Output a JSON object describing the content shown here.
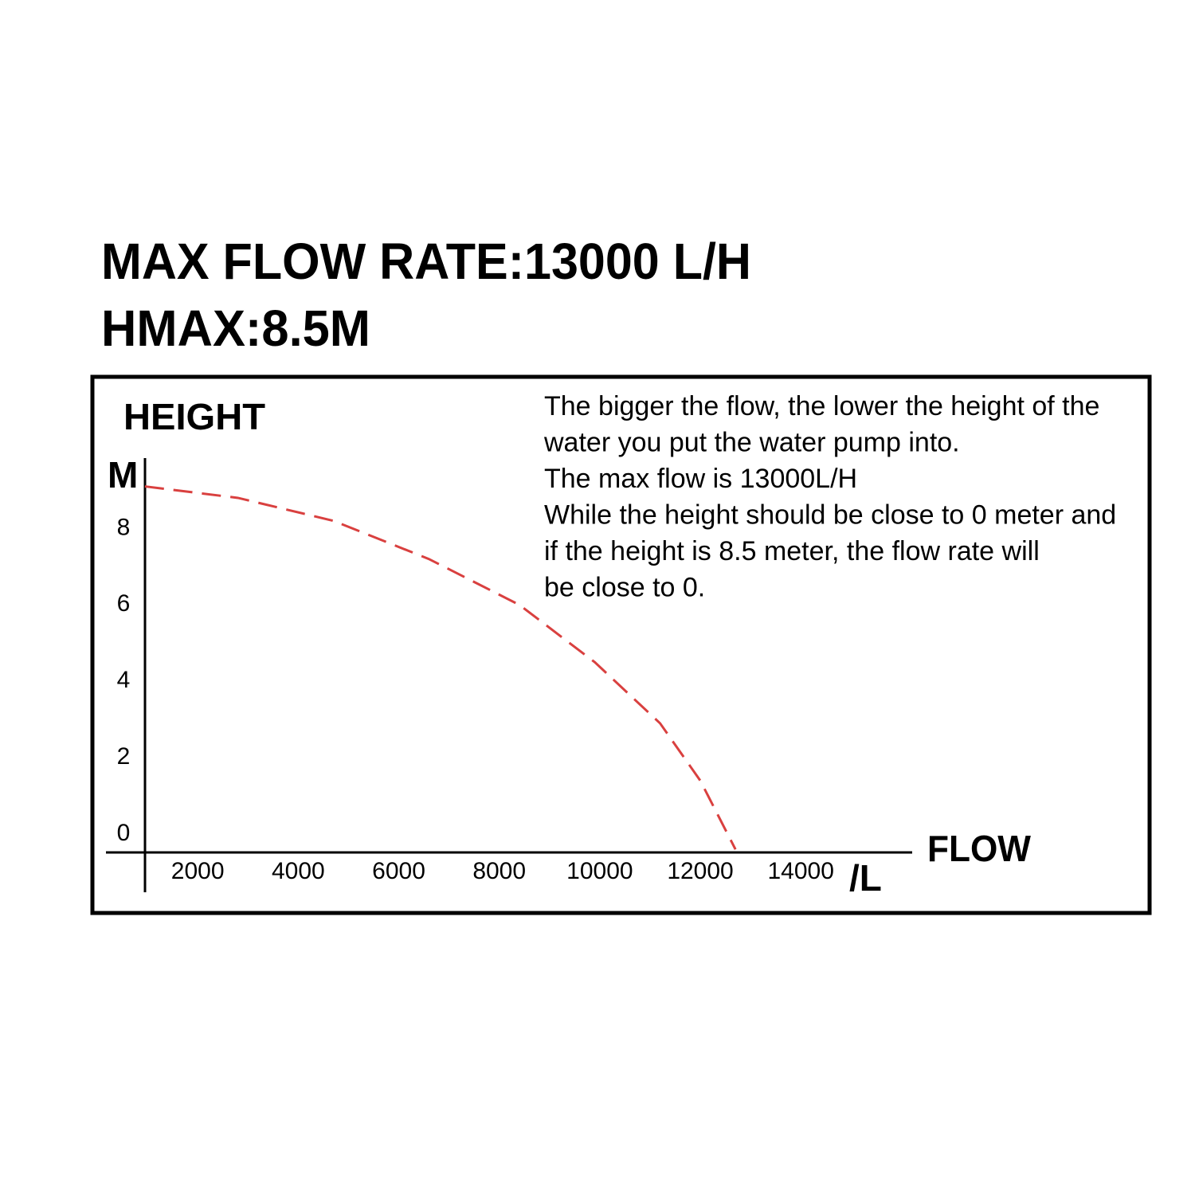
{
  "chart_data": {
    "type": "line",
    "title": "MAX FLOW RATE:13000 L/H",
    "subtitle": "HMAX:8.5M",
    "y_label": "HEIGHT",
    "y_unit": "M",
    "x_label": "FLOW",
    "x_unit": "/L",
    "annotation": [
      "The bigger the flow, the lower the height of the",
      "water you put the water pump into.",
      "The max flow is 13000L/H",
      "While the height should be close to 0 meter and",
      "if the height is 8.5 meter, the flow rate will",
      "be close to 0."
    ],
    "x": [
      950,
      2800,
      4700,
      6600,
      8400,
      9900,
      11200,
      12000,
      12700
    ],
    "series": [
      {
        "color": "#d9403f",
        "line_style": "dashed",
        "values": [
          9.1,
          8.8,
          8.2,
          7.2,
          6,
          4.5,
          2.9,
          1.4,
          -0.4
        ]
      }
    ],
    "xlim": [
      0,
      16200
    ],
    "xticks": [
      2000,
      4000,
      6000,
      8000,
      10000,
      12000,
      14000
    ],
    "ylim": [
      -0.5,
      9.8
    ],
    "yticks": [
      0,
      2,
      4,
      6,
      8
    ]
  }
}
